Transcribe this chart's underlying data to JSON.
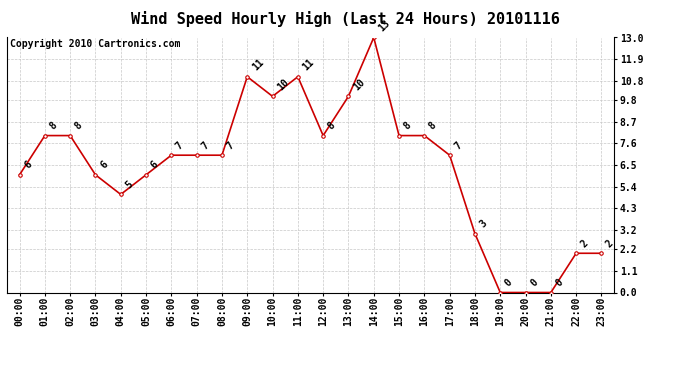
{
  "title": "Wind Speed Hourly High (Last 24 Hours) 20101116",
  "copyright": "Copyright 2010 Cartronics.com",
  "hours": [
    "00:00",
    "01:00",
    "02:00",
    "03:00",
    "04:00",
    "05:00",
    "06:00",
    "07:00",
    "08:00",
    "09:00",
    "10:00",
    "11:00",
    "12:00",
    "13:00",
    "14:00",
    "15:00",
    "16:00",
    "17:00",
    "18:00",
    "19:00",
    "20:00",
    "21:00",
    "22:00",
    "23:00"
  ],
  "values": [
    6,
    8,
    8,
    6,
    5,
    6,
    7,
    7,
    7,
    11,
    10,
    11,
    8,
    10,
    13,
    8,
    8,
    7,
    3,
    0,
    0,
    0,
    2,
    2
  ],
  "ylim": [
    0.0,
    13.0
  ],
  "ytick_vals": [
    0.0,
    1.1,
    2.2,
    3.2,
    4.3,
    5.4,
    6.5,
    7.6,
    8.7,
    9.8,
    10.8,
    11.9,
    13.0
  ],
  "ytick_labels": [
    "0.0",
    "1.1",
    "2.2",
    "3.2",
    "4.3",
    "5.4",
    "6.5",
    "7.6",
    "8.7",
    "9.8",
    "10.8",
    "11.9",
    "13.0"
  ],
  "line_color": "#cc0000",
  "bg_color": "#ffffff",
  "grid_color": "#c8c8c8",
  "title_fontsize": 11,
  "copyright_fontsize": 7,
  "tick_fontsize": 7,
  "annot_fontsize": 7
}
